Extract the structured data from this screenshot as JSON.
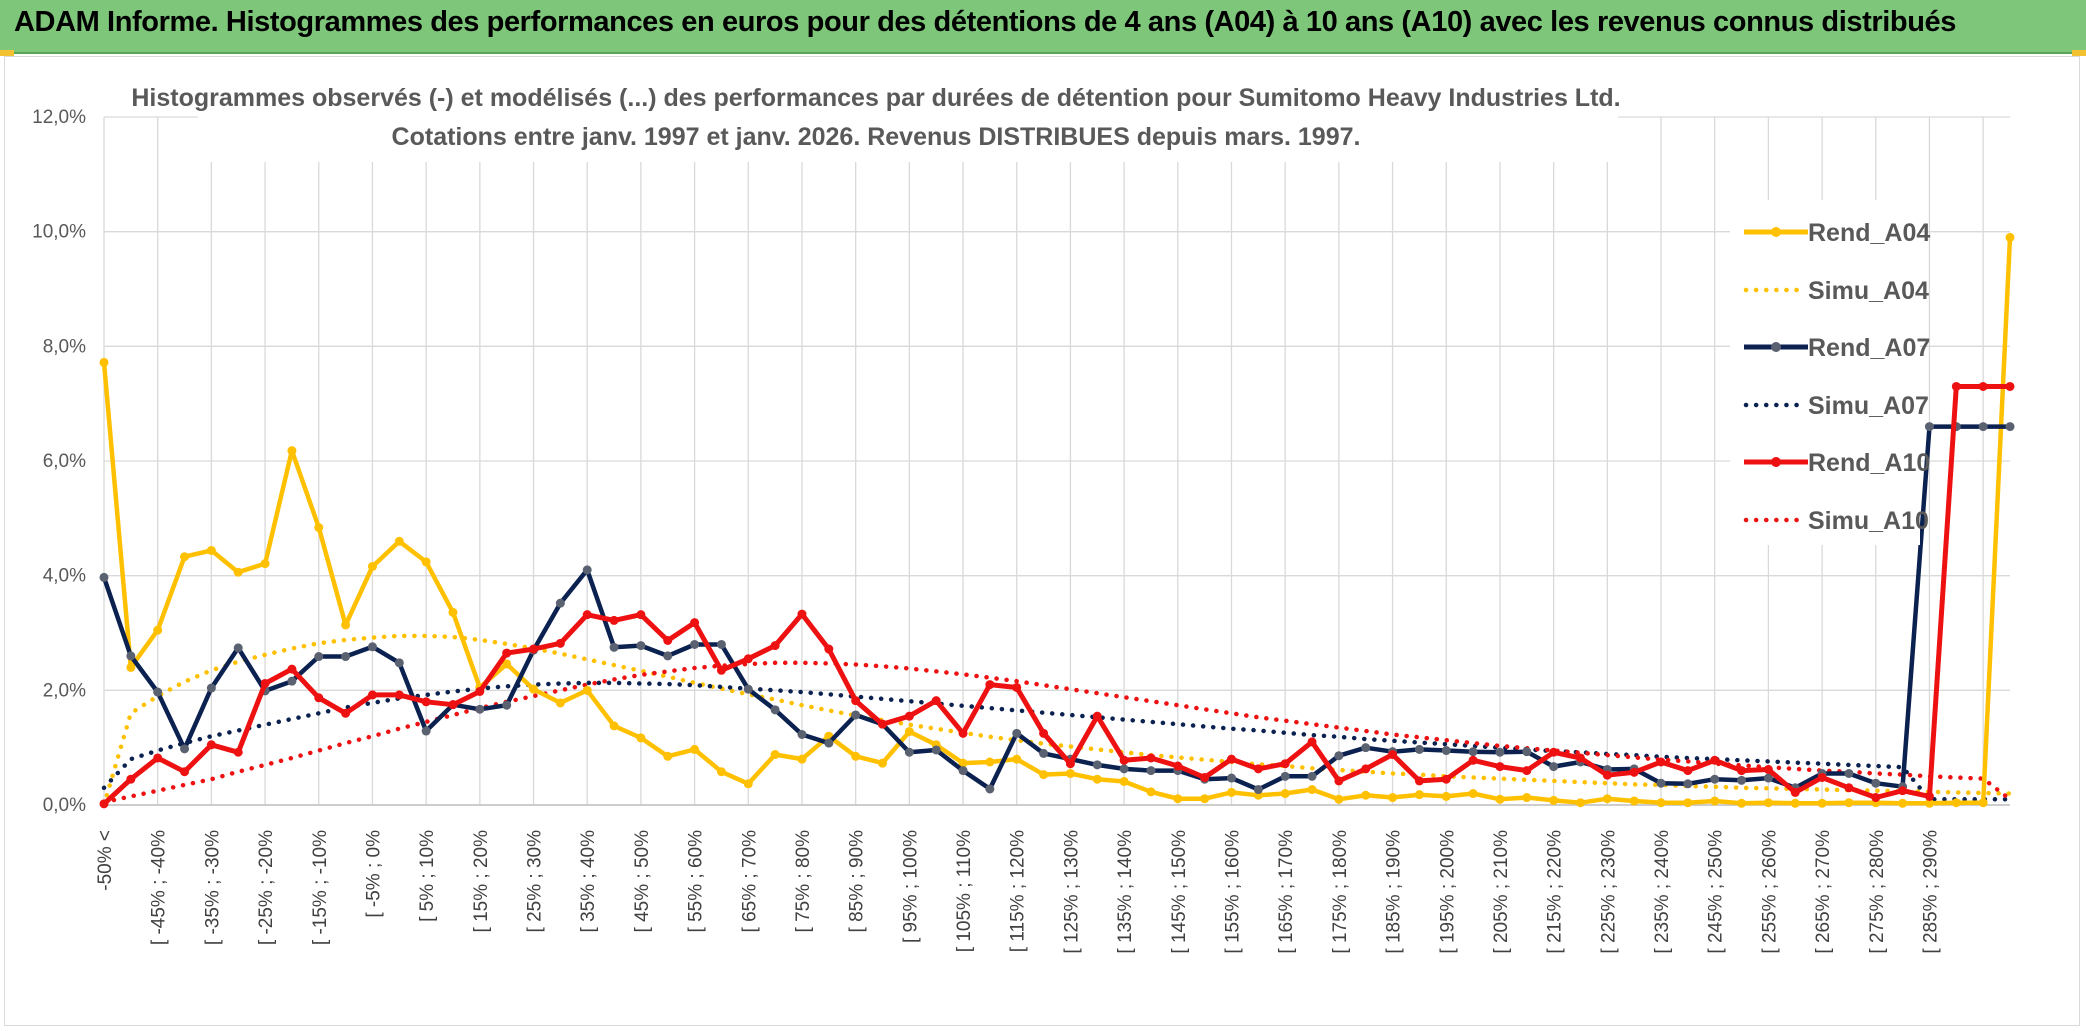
{
  "header": {
    "title": "ADAM Informe. Histogrammes des performances en euros pour des détentions de 4 ans (A04) à 10 ans (A10) avec les revenus connus distribués"
  },
  "colors": {
    "banner": "#7dc67a",
    "A04": "#ffc000",
    "A07": "#0b2150",
    "A07_marker": "#5a6170",
    "A10": "#ee1111"
  },
  "chart_data": {
    "type": "line",
    "title": "Histogrammes observés (-) et modélisés (...) des performances par durées de détention pour Sumitomo Heavy Industries Ltd.",
    "subtitle": "Cotations entre janv. 1997 et janv. 2026. Revenus DISTRIBUES depuis mars. 1997.",
    "xlabel": "",
    "ylabel": "",
    "ylim": [
      0,
      12
    ],
    "yticks": [
      "0,0%",
      "2,0%",
      "4,0%",
      "6,0%",
      "8,0%",
      "10,0%",
      "12,0%"
    ],
    "grid": true,
    "legend_position": "right",
    "x_labels": [
      "-50% <",
      "[ -45% ; -40%",
      "[ -35% ; -30%",
      "[ -25% ; -20%",
      "[ -15% ; -10%",
      "[ -5% ; 0%",
      "[ 5% ; 10%",
      "[ 15% ; 20%",
      "[ 25% ; 30%",
      "[ 35% ; 40%",
      "[ 45% ; 50%",
      "[ 55% ; 60%",
      "[ 65% ; 70%",
      "[ 75% ; 80%",
      "[ 85% ; 90%",
      "[ 95% ; 100%",
      "[ 105% ; 110%",
      "[ 115% ; 120%",
      "[ 125% ; 130%",
      "[ 135% ; 140%",
      "[ 145% ; 150%",
      "[ 155% ; 160%",
      "[ 165% ; 170%",
      "[ 175% ; 180%",
      "[ 185% ; 190%",
      "[ 195% ; 200%",
      "[ 205% ; 210%",
      "[ 215% ; 220%",
      "[ 225% ; 230%",
      "[ 235% ; 240%",
      "[ 245% ; 250%",
      "[ 255% ; 260%",
      "[ 265% ; 270%",
      "[ 275% ; 280%",
      "[ 285% ; 290%"
    ],
    "n_points": 72,
    "series": [
      {
        "name": "Rend_A04",
        "style": "solid",
        "color": "#ffc000",
        "values": [
          7.72,
          2.4,
          3.05,
          4.33,
          4.44,
          4.06,
          4.21,
          6.18,
          4.84,
          3.14,
          4.16,
          4.6,
          4.24,
          3.36,
          2.05,
          2.46,
          2.02,
          1.78,
          2.0,
          1.38,
          1.17,
          0.85,
          0.97,
          0.58,
          0.37,
          0.88,
          0.8,
          1.2,
          0.85,
          0.73,
          1.28,
          1.05,
          0.73,
          0.75,
          0.8,
          0.53,
          0.55,
          0.45,
          0.41,
          0.23,
          0.11,
          0.11,
          0.22,
          0.17,
          0.2,
          0.27,
          0.1,
          0.17,
          0.13,
          0.18,
          0.15,
          0.2,
          0.1,
          0.13,
          0.08,
          0.04,
          0.11,
          0.07,
          0.04,
          0.04,
          0.07,
          0.03,
          0.04,
          0.03,
          0.03,
          0.04,
          0.04,
          0.03,
          0.03,
          0.04,
          0.04,
          9.9
        ]
      },
      {
        "name": "Simu_A04",
        "style": "dotted",
        "color": "#ffc000",
        "values": [
          0.0,
          1.6,
          1.9,
          2.15,
          2.35,
          2.5,
          2.62,
          2.73,
          2.82,
          2.88,
          2.92,
          2.95,
          2.95,
          2.93,
          2.88,
          2.81,
          2.73,
          2.64,
          2.54,
          2.44,
          2.34,
          2.24,
          2.13,
          2.03,
          1.93,
          1.84,
          1.74,
          1.65,
          1.56,
          1.48,
          1.4,
          1.33,
          1.26,
          1.19,
          1.13,
          1.07,
          1.02,
          0.97,
          0.92,
          0.87,
          0.83,
          0.79,
          0.75,
          0.71,
          0.68,
          0.64,
          0.61,
          0.58,
          0.55,
          0.53,
          0.5,
          0.48,
          0.46,
          0.44,
          0.42,
          0.4,
          0.38,
          0.36,
          0.35,
          0.33,
          0.32,
          0.3,
          0.29,
          0.28,
          0.27,
          0.26,
          0.25,
          0.24,
          0.23,
          0.22,
          0.21,
          0.2
        ]
      },
      {
        "name": "Rend_A07",
        "style": "solid",
        "color": "#0b2150",
        "values": [
          3.97,
          2.6,
          1.97,
          0.98,
          2.04,
          2.74,
          1.99,
          2.16,
          2.59,
          2.59,
          2.76,
          2.48,
          1.29,
          1.75,
          1.67,
          1.74,
          2.7,
          3.52,
          4.1,
          2.75,
          2.78,
          2.6,
          2.8,
          2.8,
          2.02,
          1.66,
          1.23,
          1.08,
          1.57,
          1.41,
          0.92,
          0.96,
          0.6,
          0.28,
          1.25,
          0.9,
          0.8,
          0.7,
          0.63,
          0.6,
          0.6,
          0.45,
          0.47,
          0.27,
          0.5,
          0.5,
          0.86,
          1.0,
          0.93,
          0.97,
          0.95,
          0.93,
          0.92,
          0.93,
          0.67,
          0.75,
          0.62,
          0.63,
          0.38,
          0.37,
          0.45,
          0.43,
          0.47,
          0.3,
          0.55,
          0.55,
          0.38,
          0.32,
          6.6,
          6.6,
          6.6,
          6.6
        ]
      },
      {
        "name": "Simu_A07",
        "style": "dotted",
        "color": "#0b2150",
        "values": [
          0.3,
          0.8,
          0.95,
          1.08,
          1.2,
          1.3,
          1.4,
          1.5,
          1.6,
          1.7,
          1.78,
          1.86,
          1.92,
          1.98,
          2.03,
          2.07,
          2.1,
          2.12,
          2.13,
          2.13,
          2.12,
          2.11,
          2.09,
          2.06,
          2.03,
          2.0,
          1.97,
          1.93,
          1.89,
          1.85,
          1.81,
          1.77,
          1.73,
          1.69,
          1.65,
          1.61,
          1.57,
          1.53,
          1.49,
          1.45,
          1.41,
          1.37,
          1.33,
          1.3,
          1.26,
          1.22,
          1.19,
          1.15,
          1.12,
          1.09,
          1.06,
          1.03,
          1.0,
          0.97,
          0.94,
          0.92,
          0.89,
          0.87,
          0.84,
          0.82,
          0.8,
          0.78,
          0.76,
          0.74,
          0.72,
          0.7,
          0.68,
          0.66,
          0.1,
          0.1,
          0.1,
          0.1
        ]
      },
      {
        "name": "Rend_A10",
        "style": "solid",
        "color": "#ee1111",
        "values": [
          0.02,
          0.45,
          0.82,
          0.58,
          1.05,
          0.92,
          2.12,
          2.37,
          1.87,
          1.6,
          1.92,
          1.92,
          1.8,
          1.75,
          1.98,
          2.65,
          2.72,
          2.82,
          3.32,
          3.22,
          3.32,
          2.87,
          3.18,
          2.35,
          2.55,
          2.78,
          3.33,
          2.72,
          1.82,
          1.41,
          1.55,
          1.82,
          1.25,
          2.1,
          2.05,
          1.25,
          0.72,
          1.55,
          0.78,
          0.82,
          0.68,
          0.48,
          0.8,
          0.63,
          0.72,
          1.1,
          0.42,
          0.63,
          0.88,
          0.42,
          0.45,
          0.78,
          0.67,
          0.6,
          0.92,
          0.82,
          0.52,
          0.57,
          0.75,
          0.6,
          0.78,
          0.6,
          0.62,
          0.22,
          0.48,
          0.3,
          0.13,
          0.25,
          0.15,
          7.3,
          7.3,
          7.3
        ]
      },
      {
        "name": "Simu_A10",
        "style": "dotted",
        "color": "#ee1111",
        "values": [
          0.05,
          0.15,
          0.25,
          0.35,
          0.45,
          0.58,
          0.7,
          0.82,
          0.95,
          1.08,
          1.2,
          1.33,
          1.45,
          1.57,
          1.69,
          1.8,
          1.9,
          2.0,
          2.1,
          2.19,
          2.27,
          2.33,
          2.39,
          2.43,
          2.46,
          2.48,
          2.48,
          2.47,
          2.45,
          2.42,
          2.38,
          2.33,
          2.28,
          2.22,
          2.16,
          2.09,
          2.02,
          1.95,
          1.88,
          1.81,
          1.74,
          1.67,
          1.6,
          1.53,
          1.47,
          1.41,
          1.35,
          1.29,
          1.23,
          1.18,
          1.13,
          1.08,
          1.03,
          0.99,
          0.95,
          0.91,
          0.87,
          0.83,
          0.79,
          0.76,
          0.72,
          0.69,
          0.66,
          0.63,
          0.6,
          0.58,
          0.55,
          0.53,
          0.5,
          0.48,
          0.46,
          0.1
        ]
      }
    ]
  }
}
